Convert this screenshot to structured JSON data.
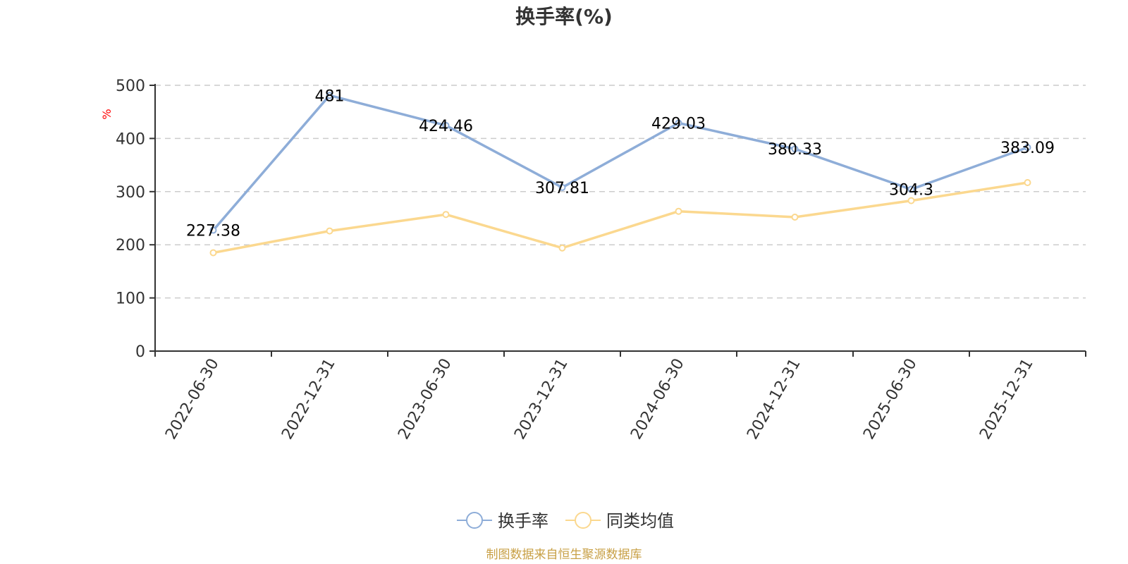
{
  "chart_data": {
    "type": "line",
    "title": "换手率(%)",
    "xlabel": "",
    "ylabel": "%",
    "ylim": [
      0,
      500
    ],
    "yticks": [
      0,
      100,
      200,
      300,
      400,
      500
    ],
    "grid": true,
    "legend_position": "bottom-center",
    "categories": [
      "2022-06-30",
      "2022-12-31",
      "2023-06-30",
      "2023-12-31",
      "2024-06-30",
      "2024-12-31",
      "2025-06-30",
      "2025-12-31"
    ],
    "series": [
      {
        "name": "换手率",
        "color": "#8eadd8",
        "values": [
          227.38,
          481,
          424.46,
          307.81,
          429.03,
          380.33,
          304.3,
          383.09
        ],
        "labels": [
          "227.38",
          "481",
          "424.46",
          "307.81",
          "429.03",
          "380.33",
          "304.3",
          "383.09"
        ]
      },
      {
        "name": "同类均值",
        "color": "#fbd88f",
        "values": [
          185,
          226,
          257,
          194,
          263,
          252,
          283,
          317
        ]
      }
    ]
  },
  "footer": {
    "source": "制图数据来自恒生聚源数据库"
  }
}
